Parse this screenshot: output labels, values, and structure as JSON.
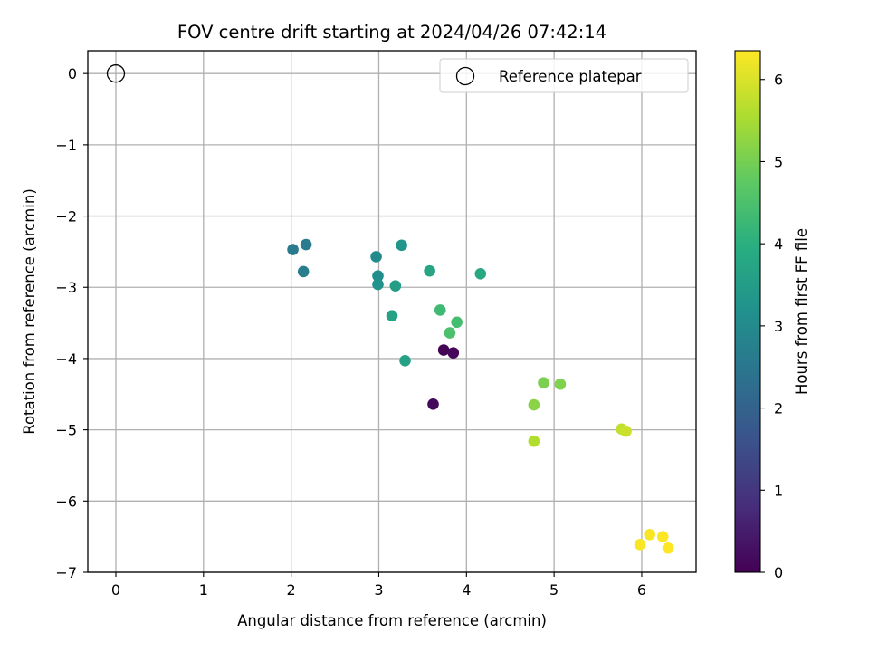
{
  "chart_data": {
    "type": "scatter",
    "title": "FOV centre drift starting at 2024/04/26 07:42:14",
    "xlabel": "Angular distance from reference (arcmin)",
    "ylabel": "Rotation from reference (arcmin)",
    "xlim": [
      -0.32,
      6.62
    ],
    "ylim": [
      -7.0,
      0.32
    ],
    "xticks": [
      0,
      1,
      2,
      3,
      4,
      5,
      6
    ],
    "yticks": [
      0,
      -1,
      -2,
      -3,
      -4,
      -5,
      -6,
      -7
    ],
    "grid": true,
    "legend": {
      "placement": "top-right",
      "entries": [
        "Reference platepar"
      ]
    },
    "reference_point": {
      "name": "Reference platepar",
      "x": 0,
      "y": 0,
      "marker": "hollow-circle"
    },
    "colorbar": {
      "label": "Hours from first FF file",
      "range": [
        0,
        6.35
      ],
      "ticks": [
        0,
        1,
        2,
        3,
        4,
        5,
        6
      ],
      "colormap": "viridis"
    },
    "points": [
      {
        "x": 3.74,
        "y": -3.88,
        "hours": 0.05
      },
      {
        "x": 3.85,
        "y": -3.92,
        "hours": 0.1
      },
      {
        "x": 3.62,
        "y": -4.64,
        "hours": 0.15
      },
      {
        "x": 2.02,
        "y": -2.47,
        "hours": 2.6
      },
      {
        "x": 2.17,
        "y": -2.4,
        "hours": 2.65
      },
      {
        "x": 2.14,
        "y": -2.78,
        "hours": 2.7
      },
      {
        "x": 2.97,
        "y": -2.57,
        "hours": 3.0
      },
      {
        "x": 2.99,
        "y": -2.84,
        "hours": 3.1
      },
      {
        "x": 2.99,
        "y": -2.96,
        "hours": 3.2
      },
      {
        "x": 3.26,
        "y": -2.41,
        "hours": 3.3
      },
      {
        "x": 3.19,
        "y": -2.98,
        "hours": 3.5
      },
      {
        "x": 3.15,
        "y": -3.4,
        "hours": 3.6
      },
      {
        "x": 3.58,
        "y": -2.77,
        "hours": 3.7
      },
      {
        "x": 4.16,
        "y": -2.81,
        "hours": 3.8
      },
      {
        "x": 3.3,
        "y": -4.03,
        "hours": 3.65
      },
      {
        "x": 3.7,
        "y": -3.32,
        "hours": 4.3
      },
      {
        "x": 3.89,
        "y": -3.49,
        "hours": 4.4
      },
      {
        "x": 3.81,
        "y": -3.64,
        "hours": 4.5
      },
      {
        "x": 4.88,
        "y": -4.34,
        "hours": 5.05
      },
      {
        "x": 5.07,
        "y": -4.36,
        "hours": 5.1
      },
      {
        "x": 4.77,
        "y": -4.65,
        "hours": 5.2
      },
      {
        "x": 4.77,
        "y": -5.16,
        "hours": 5.6
      },
      {
        "x": 5.77,
        "y": -4.99,
        "hours": 5.75
      },
      {
        "x": 5.82,
        "y": -5.02,
        "hours": 5.85
      },
      {
        "x": 5.98,
        "y": -6.61,
        "hours": 6.3
      },
      {
        "x": 6.09,
        "y": -6.47,
        "hours": 6.3
      },
      {
        "x": 6.24,
        "y": -6.5,
        "hours": 6.33
      },
      {
        "x": 6.3,
        "y": -6.66,
        "hours": 6.35
      }
    ]
  }
}
